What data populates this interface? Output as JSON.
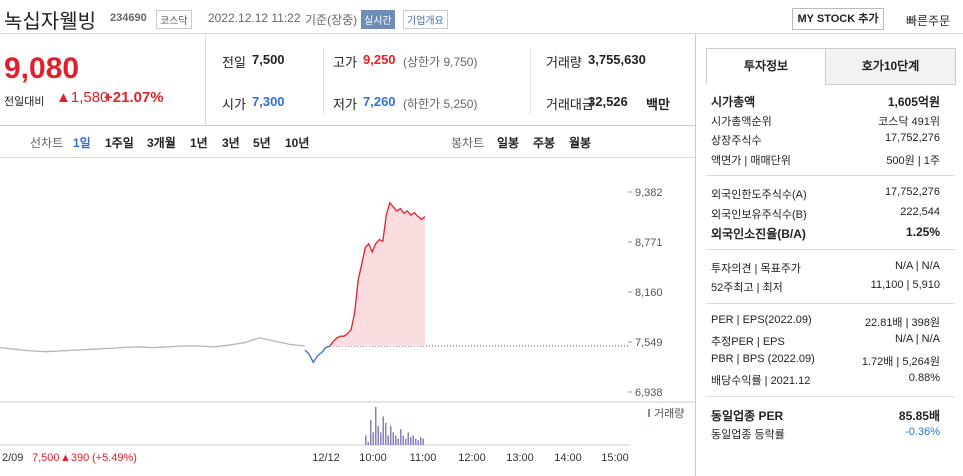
{
  "header": {
    "name": "녹십자웰빙",
    "code": "234690",
    "market": "코스닥",
    "datetime": "2022.12.12 11:22",
    "status": "기준(장중)",
    "realtime": "실시간",
    "overview": "기업개요",
    "mystock": "MY STOCK 추가",
    "quick_order": "빠른주문"
  },
  "price": {
    "current": "9,080",
    "change_label": "전일대비",
    "change": "▲1,580",
    "change_rate": "+21.07%"
  },
  "quotes": [
    {
      "label": "전일",
      "value": "7,500"
    },
    {
      "label": "고가",
      "value": "9,250",
      "note": "(상한가 9,750)"
    },
    {
      "label": "거래량",
      "value": "3,755,630"
    },
    {
      "label": "시가",
      "value": "7,300"
    },
    {
      "label": "저가",
      "value": "7,260",
      "note": "(하한가 5,250)"
    },
    {
      "label": "거래대금",
      "value": "32,526",
      "unit": "백만"
    }
  ],
  "chart_tabs": {
    "line_label": "선차트",
    "periods": [
      "1일",
      "1주일",
      "3개월",
      "1년",
      "3년",
      "5년",
      "10년"
    ],
    "candle_label": "봉차트",
    "candles": [
      "일봉",
      "주봉",
      "월봉"
    ]
  },
  "chart": {
    "type": "line",
    "ylim": [
      6840,
      9712
    ],
    "yticks": [
      {
        "value": 9382,
        "label": "9,382"
      },
      {
        "value": 8771,
        "label": "8,771"
      },
      {
        "value": 8160,
        "label": "8,160"
      },
      {
        "value": 7549,
        "label": "7,549"
      },
      {
        "value": 6938,
        "label": "6,938"
      }
    ],
    "xticks": [
      "12/12",
      "10:00",
      "11:00",
      "12:00",
      "13:00",
      "14:00",
      "15:00"
    ],
    "baseline": 7500,
    "series": [
      {
        "color": "#b5b5b5",
        "values": [
          7480,
          7460,
          7440,
          7430,
          7440,
          7450,
          7460,
          7470,
          7480,
          7490,
          7480,
          7490,
          7500,
          7500,
          7490,
          7510,
          7540,
          7600,
          7560,
          7520,
          7500
        ]
      },
      {
        "color": "#2f6fd6",
        "values": [
          7450,
          7400,
          7300,
          7380,
          7420,
          7480,
          7500
        ]
      },
      {
        "color": "#e0202a",
        "values": [
          7500,
          7560,
          7600,
          7620,
          7620,
          7650,
          7700,
          7900,
          8300,
          8500,
          8700,
          8750,
          8650,
          8750,
          8800,
          8780,
          9100,
          9250,
          9200,
          9150,
          9180,
          9120,
          9150,
          9100,
          9130,
          9080,
          9050,
          9080
        ]
      }
    ],
    "volume_label": "거래량",
    "volume": [
      30,
      10,
      80,
      40,
      120,
      60,
      40,
      90,
      70,
      30,
      60,
      40,
      30,
      20,
      50,
      30,
      20,
      40,
      25,
      30,
      20,
      15,
      25,
      20
    ],
    "footer": {
      "date": "2/09",
      "price": "7,500",
      "change": "▲390",
      "rate": "(+5.49%)"
    }
  },
  "info": {
    "tabs": [
      "투자정보",
      "호가10단계"
    ],
    "groups": [
      [
        {
          "label": "시가총액",
          "value": "1,605억원",
          "bold": true
        },
        {
          "label": "시가총액순위",
          "value": "코스닥 491위"
        },
        {
          "label": "상장주식수",
          "value": "17,752,276"
        },
        {
          "label": "액면가 | 매매단위",
          "value": "500원 | 1주"
        }
      ],
      [
        {
          "label": "외국인한도주식수(A)",
          "value": "17,752,276"
        },
        {
          "label": "외국인보유주식수(B)",
          "value": "222,544"
        },
        {
          "label": "외국인소진율(B/A)",
          "value": "1.25%",
          "bold": true
        }
      ],
      [
        {
          "label": "투자의견 | 목표주가",
          "value": "N/A | N/A"
        },
        {
          "label": "52주최고 | 최저",
          "value": "11,100 | 5,910"
        }
      ],
      [
        {
          "label": "PER | EPS(2022.09)",
          "value": "22.81배 | 398원"
        },
        {
          "label": "추정PER | EPS",
          "value": "N/A | N/A"
        },
        {
          "label": "PBR | BPS (2022.09)",
          "value": "1.72배 | 5,264원"
        },
        {
          "label": "배당수익률 | 2021.12",
          "value": "0.88%"
        }
      ],
      [
        {
          "label": "동일업종 PER",
          "value": "85.85배",
          "bold": true
        },
        {
          "label": "동일업종 등락률",
          "value": "-0.36%",
          "blue": true
        }
      ]
    ]
  }
}
